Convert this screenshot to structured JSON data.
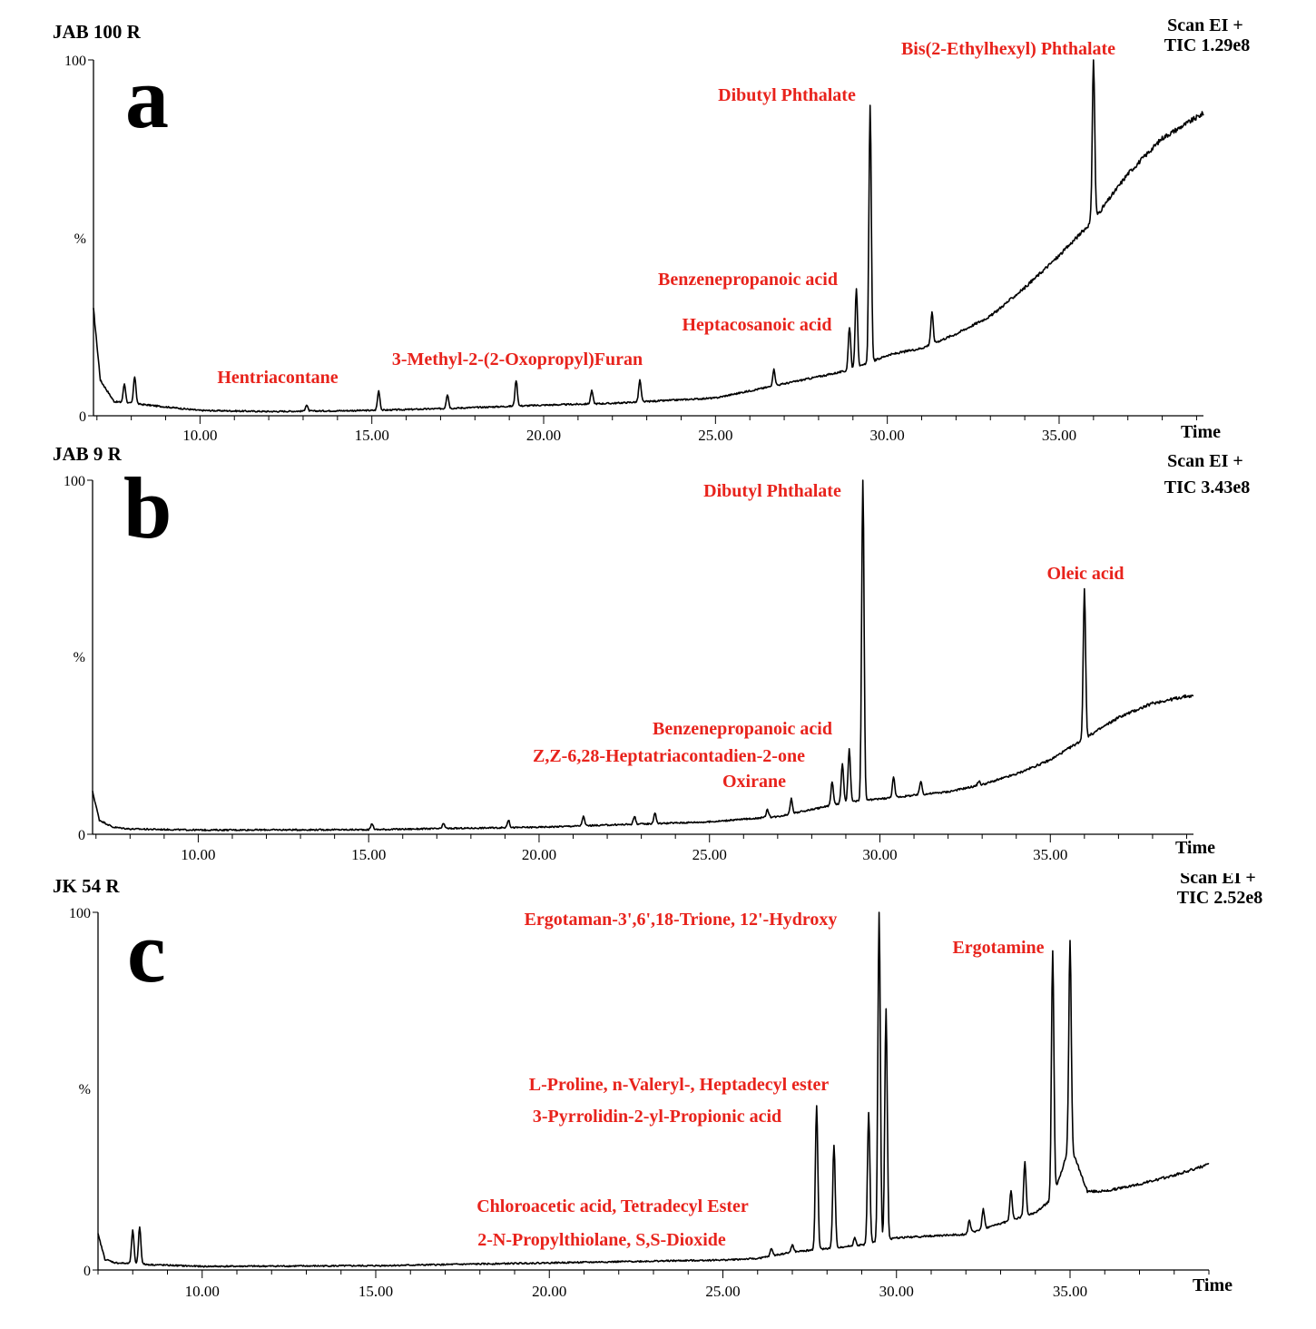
{
  "chart_data": [
    {
      "type": "line",
      "panel": "a",
      "sample": "JAB 100 R",
      "scan_mode": "Scan EI +",
      "tic": "TIC 1.29e8",
      "xlabel": "Time",
      "ylabel": "%",
      "xlim": [
        6.9,
        39.2
      ],
      "ylim": [
        0,
        100
      ],
      "x_ticks": [
        "10.00",
        "15.00",
        "20.00",
        "25.00",
        "30.00",
        "35.00"
      ],
      "x_tick_values": [
        10,
        15,
        20,
        25,
        30,
        35
      ],
      "y_ticks": [
        "0",
        "%",
        "100"
      ],
      "line_color": "#000000",
      "label_color": "#e8231c",
      "baseline": [
        [
          6.9,
          30
        ],
        [
          7.1,
          10
        ],
        [
          7.5,
          4
        ],
        [
          8.0,
          3.5
        ],
        [
          8.5,
          3
        ],
        [
          9,
          2.5
        ],
        [
          10,
          1.5
        ],
        [
          12,
          1.2
        ],
        [
          15,
          1.5
        ],
        [
          17,
          2
        ],
        [
          20,
          3
        ],
        [
          22,
          3.5
        ],
        [
          24,
          4.5
        ],
        [
          25,
          5
        ],
        [
          26,
          7
        ],
        [
          27,
          9
        ],
        [
          28,
          11
        ],
        [
          29,
          13
        ],
        [
          30,
          17
        ],
        [
          31,
          19
        ],
        [
          32,
          23
        ],
        [
          33,
          28
        ],
        [
          34,
          36
        ],
        [
          35,
          45
        ],
        [
          36,
          55
        ],
        [
          37,
          68
        ],
        [
          38,
          78
        ],
        [
          39.2,
          85
        ]
      ],
      "peaks": [
        {
          "x": 7.8,
          "y": 9
        },
        {
          "x": 8.1,
          "y": 11
        },
        {
          "x": 13.1,
          "y": 3
        },
        {
          "x": 15.2,
          "y": 7
        },
        {
          "x": 17.2,
          "y": 6
        },
        {
          "x": 19.2,
          "y": 10
        },
        {
          "x": 21.4,
          "y": 7
        },
        {
          "x": 22.8,
          "y": 10
        },
        {
          "x": 26.7,
          "y": 13
        },
        {
          "x": 28.9,
          "y": 25
        },
        {
          "x": 29.1,
          "y": 36
        },
        {
          "x": 29.5,
          "y": 87
        },
        {
          "x": 31.3,
          "y": 29
        },
        {
          "x": 36.0,
          "y": 100
        }
      ],
      "annotations": [
        "Hentriacontane",
        "3-Methyl-2-(2-Oxopropyl)Furan",
        "Heptacosanoic acid",
        "Benzenepropanoic acid",
        "Dibutyl Phthalate",
        "Bis(2-Ethylhexyl) Phthalate"
      ]
    },
    {
      "type": "line",
      "panel": "b",
      "sample": "JAB 9 R",
      "scan_mode": "Scan EI +",
      "tic": "TIC 3.43e8",
      "xlabel": "Time",
      "ylabel": "%",
      "xlim": [
        6.9,
        39.2
      ],
      "ylim": [
        0,
        100
      ],
      "x_ticks": [
        "10.00",
        "15.00",
        "20.00",
        "25.00",
        "30.00",
        "35.00"
      ],
      "x_tick_values": [
        10,
        15,
        20,
        25,
        30,
        35
      ],
      "y_ticks": [
        "0",
        "%",
        "100"
      ],
      "line_color": "#000000",
      "label_color": "#e8231c",
      "baseline": [
        [
          6.9,
          12
        ],
        [
          7.1,
          4
        ],
        [
          7.5,
          2
        ],
        [
          8,
          1.5
        ],
        [
          10,
          1.2
        ],
        [
          15,
          1.3
        ],
        [
          20,
          2
        ],
        [
          25,
          3.5
        ],
        [
          27,
          5
        ],
        [
          28,
          7
        ],
        [
          29,
          9
        ],
        [
          30,
          10
        ],
        [
          31,
          11
        ],
        [
          32,
          12
        ],
        [
          33,
          14
        ],
        [
          34,
          17
        ],
        [
          35,
          21
        ],
        [
          36,
          27
        ],
        [
          37,
          33
        ],
        [
          38,
          37
        ],
        [
          39,
          39
        ],
        [
          39.2,
          39
        ]
      ],
      "peaks": [
        {
          "x": 15.1,
          "y": 3
        },
        {
          "x": 17.2,
          "y": 3
        },
        {
          "x": 19.1,
          "y": 4
        },
        {
          "x": 21.3,
          "y": 5
        },
        {
          "x": 22.8,
          "y": 5
        },
        {
          "x": 23.4,
          "y": 6
        },
        {
          "x": 26.7,
          "y": 7
        },
        {
          "x": 27.4,
          "y": 10
        },
        {
          "x": 28.6,
          "y": 15
        },
        {
          "x": 28.9,
          "y": 20
        },
        {
          "x": 29.1,
          "y": 24
        },
        {
          "x": 29.5,
          "y": 100
        },
        {
          "x": 30.4,
          "y": 16
        },
        {
          "x": 31.2,
          "y": 15
        },
        {
          "x": 32.9,
          "y": 15
        },
        {
          "x": 36.0,
          "y": 69
        }
      ],
      "annotations": [
        "Benzenepropanoic acid",
        "Z,Z-6,28-Heptatriacontadien-2-one",
        "Oxirane",
        "Dibutyl Phthalate",
        "Oleic acid"
      ]
    },
    {
      "type": "line",
      "panel": "c",
      "sample": "JK 54 R",
      "scan_mode": "Scan EI +",
      "tic": "TIC 2.52e8",
      "xlabel": "Time",
      "ylabel": "%",
      "xlim": [
        7.0,
        39.0
      ],
      "ylim": [
        0,
        100
      ],
      "x_ticks": [
        "10.00",
        "15.00",
        "20.00",
        "25.00",
        "30.00",
        "35.00"
      ],
      "x_tick_values": [
        10,
        15,
        20,
        25,
        30,
        35
      ],
      "y_ticks": [
        "0",
        "%",
        "100"
      ],
      "line_color": "#000000",
      "label_color": "#e8231c",
      "baseline": [
        [
          7.0,
          10
        ],
        [
          7.2,
          3
        ],
        [
          7.5,
          2
        ],
        [
          8.5,
          1.5
        ],
        [
          10,
          1
        ],
        [
          15,
          1.2
        ],
        [
          20,
          2
        ],
        [
          25,
          2.8
        ],
        [
          26,
          3.2
        ],
        [
          27,
          5
        ],
        [
          28,
          6
        ],
        [
          29,
          7
        ],
        [
          29.5,
          8
        ],
        [
          30,
          9
        ],
        [
          31,
          9.5
        ],
        [
          32,
          10
        ],
        [
          33,
          13
        ],
        [
          34,
          16
        ],
        [
          34.5,
          20
        ],
        [
          35,
          35
        ],
        [
          35.5,
          22
        ],
        [
          36,
          22
        ],
        [
          37,
          24
        ],
        [
          38,
          26.5
        ],
        [
          39,
          29.5
        ]
      ],
      "peaks": [
        {
          "x": 8.0,
          "y": 11
        },
        {
          "x": 8.2,
          "y": 12
        },
        {
          "x": 26.4,
          "y": 6
        },
        {
          "x": 27.0,
          "y": 7
        },
        {
          "x": 27.7,
          "y": 46
        },
        {
          "x": 28.2,
          "y": 35
        },
        {
          "x": 28.8,
          "y": 9
        },
        {
          "x": 29.2,
          "y": 44
        },
        {
          "x": 29.5,
          "y": 100
        },
        {
          "x": 29.7,
          "y": 73
        },
        {
          "x": 32.1,
          "y": 14
        },
        {
          "x": 32.5,
          "y": 17
        },
        {
          "x": 33.3,
          "y": 22
        },
        {
          "x": 33.7,
          "y": 30
        },
        {
          "x": 34.5,
          "y": 89
        },
        {
          "x": 35.0,
          "y": 92
        }
      ],
      "annotations": [
        "Ergotaman-3',6',18-Trione, 12'-Hydroxy",
        "Ergotamine",
        "L-Proline, n-Valeryl-, Heptadecyl ester",
        "3-Pyrrolidin-2-yl-Propionic acid",
        "Chloroacetic acid, Tetradecyl Ester",
        "2-N-Propylthiolane, S,S-Dioxide"
      ]
    }
  ]
}
